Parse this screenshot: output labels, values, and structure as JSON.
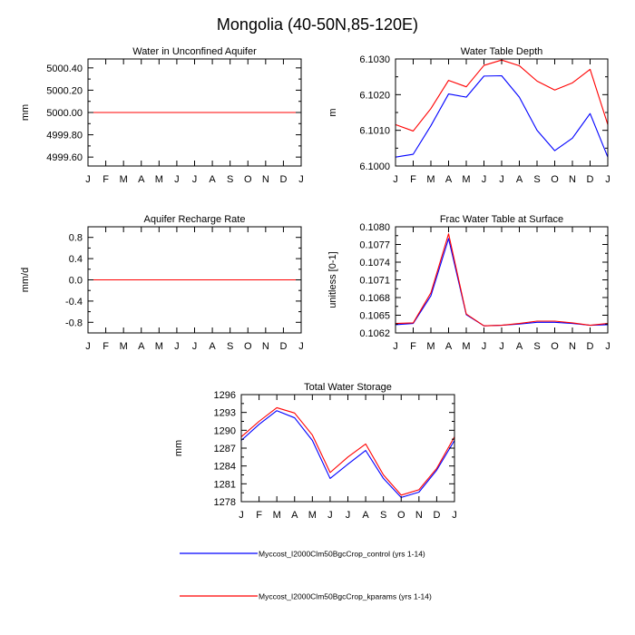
{
  "title": "Mongolia (40-50N,85-120E)",
  "colors": {
    "control": "#0000ff",
    "kparams": "#ff0000",
    "axis": "#000000"
  },
  "legend": [
    {
      "label": "Myccost_I2000Clm50BgcCrop_control (yrs 1-14)",
      "color": "#0000ff"
    },
    {
      "label": "Myccost_I2000Clm50BgcCrop_kparams (yrs 1-14)",
      "color": "#ff0000"
    }
  ],
  "chart_data": [
    {
      "type": "line",
      "title": "Water in Unconfined Aquifer",
      "ylabel": "mm",
      "categories": [
        "J",
        "F",
        "M",
        "A",
        "M",
        "J",
        "J",
        "A",
        "S",
        "O",
        "N",
        "D",
        "J"
      ],
      "ylim": [
        4999.52,
        5000.48
      ],
      "yticks": [
        {
          "v": 5000.4,
          "label": "5000.40"
        },
        {
          "v": 5000.2,
          "label": "5000.20"
        },
        {
          "v": 5000.0,
          "label": "5000.00"
        },
        {
          "v": 4999.8,
          "label": "4999.80"
        },
        {
          "v": 4999.6,
          "label": "4999.60"
        }
      ],
      "series": [
        {
          "name": "Myccost_I2000Clm50BgcCrop_control (yrs 1-14)",
          "values": [
            5000,
            5000,
            5000,
            5000,
            5000,
            5000,
            5000,
            5000,
            5000,
            5000,
            5000,
            5000,
            5000
          ]
        },
        {
          "name": "Myccost_I2000Clm50BgcCrop_kparams (yrs 1-14)",
          "values": [
            5000,
            5000,
            5000,
            5000,
            5000,
            5000,
            5000,
            5000,
            5000,
            5000,
            5000,
            5000,
            5000
          ]
        }
      ]
    },
    {
      "type": "line",
      "title": "Water Table Depth",
      "ylabel": "m",
      "categories": [
        "J",
        "F",
        "M",
        "A",
        "M",
        "J",
        "J",
        "A",
        "S",
        "O",
        "N",
        "D",
        "J"
      ],
      "ylim": [
        6.1,
        6.103
      ],
      "yticks": [
        {
          "v": 6.103,
          "label": "6.1030"
        },
        {
          "v": 6.102,
          "label": "6.1020"
        },
        {
          "v": 6.101,
          "label": "6.1010"
        },
        {
          "v": 6.1,
          "label": "6.1000"
        }
      ],
      "series": [
        {
          "name": "Myccost_I2000Clm50BgcCrop_control (yrs 1-14)",
          "values": [
            6.10025,
            6.10033,
            6.10113,
            6.10202,
            6.10193,
            6.10252,
            6.10253,
            6.10193,
            6.101,
            6.10043,
            6.10078,
            6.10147,
            6.10025
          ]
        },
        {
          "name": "Myccost_I2000Clm50BgcCrop_kparams (yrs 1-14)",
          "values": [
            6.10116,
            6.10098,
            6.10161,
            6.1024,
            6.10222,
            6.10282,
            6.10297,
            6.10281,
            6.10238,
            6.10213,
            6.10233,
            6.10271,
            6.10116
          ]
        }
      ]
    },
    {
      "type": "line",
      "title": "Aquifer Recharge Rate",
      "ylabel": "mm/d",
      "categories": [
        "J",
        "F",
        "M",
        "A",
        "M",
        "J",
        "J",
        "A",
        "S",
        "O",
        "N",
        "D",
        "J"
      ],
      "ylim": [
        -1.0,
        1.0
      ],
      "yticks": [
        {
          "v": 0.8,
          "label": "0.8"
        },
        {
          "v": 0.4,
          "label": "0.4"
        },
        {
          "v": 0.0,
          "label": "0.0"
        },
        {
          "v": -0.4,
          "label": "-0.4"
        },
        {
          "v": -0.8,
          "label": "-0.8"
        }
      ],
      "series": [
        {
          "name": "Myccost_I2000Clm50BgcCrop_control (yrs 1-14)",
          "values": [
            0,
            0,
            0,
            0,
            0,
            0,
            0,
            0,
            0,
            0,
            0,
            0,
            0
          ]
        },
        {
          "name": "Myccost_I2000Clm50BgcCrop_kparams (yrs 1-14)",
          "values": [
            0,
            0,
            0,
            0,
            0,
            0,
            0,
            0,
            0,
            0,
            0,
            0,
            0
          ]
        }
      ]
    },
    {
      "type": "line",
      "title": "Frac Water Table at Surface",
      "ylabel": "unitless [0-1]",
      "categories": [
        "J",
        "F",
        "M",
        "A",
        "M",
        "J",
        "J",
        "A",
        "S",
        "O",
        "N",
        "D",
        "J"
      ],
      "ylim": [
        0.1062,
        0.108
      ],
      "yticks": [
        {
          "v": 0.108,
          "label": "0.1080"
        },
        {
          "v": 0.1077,
          "label": "0.1077"
        },
        {
          "v": 0.1074,
          "label": "0.1074"
        },
        {
          "v": 0.1071,
          "label": "0.1071"
        },
        {
          "v": 0.1068,
          "label": "0.1068"
        },
        {
          "v": 0.1065,
          "label": "0.1065"
        },
        {
          "v": 0.1062,
          "label": "0.1062"
        }
      ],
      "series": [
        {
          "name": "Myccost_I2000Clm50BgcCrop_control (yrs 1-14)",
          "values": [
            0.10634,
            0.10636,
            0.10683,
            0.1078,
            0.10651,
            0.10632,
            0.10633,
            0.10635,
            0.10638,
            0.10638,
            0.10636,
            0.10633,
            0.10634
          ]
        },
        {
          "name": "Myccost_I2000Clm50BgcCrop_kparams (yrs 1-14)",
          "values": [
            0.10636,
            0.10637,
            0.10688,
            0.10788,
            0.10652,
            0.10632,
            0.10633,
            0.10636,
            0.1064,
            0.1064,
            0.10637,
            0.10633,
            0.10636
          ]
        }
      ]
    },
    {
      "type": "line",
      "title": "Total Water Storage",
      "ylabel": "mm",
      "categories": [
        "J",
        "F",
        "M",
        "A",
        "M",
        "J",
        "J",
        "A",
        "S",
        "O",
        "N",
        "D",
        "J"
      ],
      "ylim": [
        1278,
        1296
      ],
      "yticks": [
        {
          "v": 1296,
          "label": "1296"
        },
        {
          "v": 1293,
          "label": "1293"
        },
        {
          "v": 1290,
          "label": "1290"
        },
        {
          "v": 1287,
          "label": "1287"
        },
        {
          "v": 1284,
          "label": "1284"
        },
        {
          "v": 1281,
          "label": "1281"
        },
        {
          "v": 1278,
          "label": "1278"
        }
      ],
      "series": [
        {
          "name": "Myccost_I2000Clm50BgcCrop_control (yrs 1-14)",
          "values": [
            1288.3,
            1291.0,
            1293.3,
            1292.1,
            1288.3,
            1281.9,
            1284.3,
            1286.6,
            1281.9,
            1278.7,
            1279.6,
            1283.3,
            1288.3
          ]
        },
        {
          "name": "Myccost_I2000Clm50BgcCrop_kparams (yrs 1-14)",
          "values": [
            1288.9,
            1291.5,
            1293.8,
            1292.9,
            1289.2,
            1282.9,
            1285.5,
            1287.7,
            1282.5,
            1279.1,
            1280.0,
            1283.6,
            1288.9
          ]
        }
      ]
    }
  ]
}
